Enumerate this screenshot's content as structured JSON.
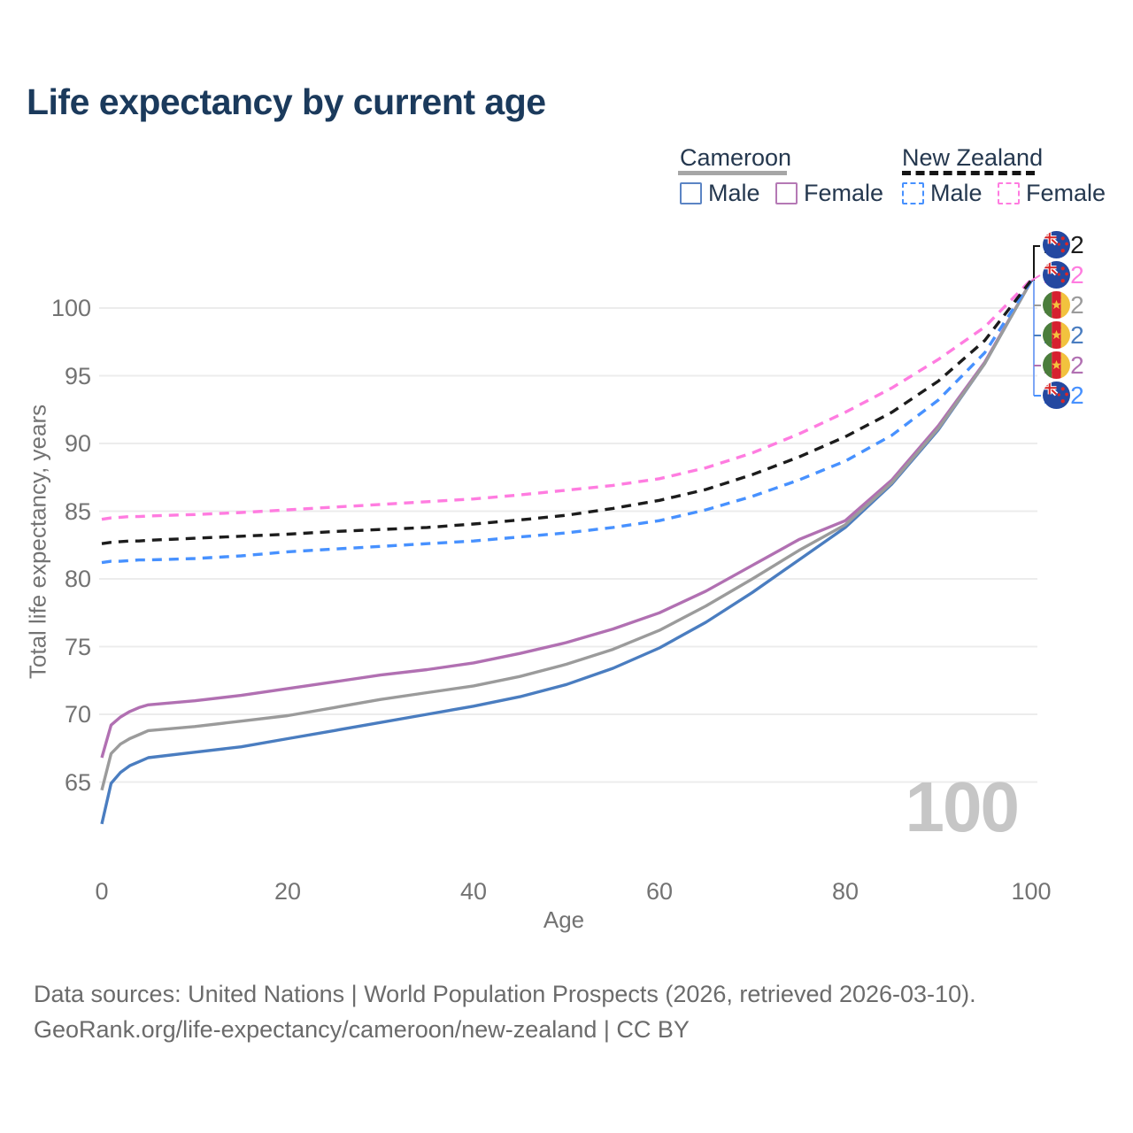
{
  "title": "Life expectancy by current age",
  "legend": {
    "groups": [
      {
        "label": "Cameroon",
        "line_style": "solid",
        "line_color": "#a6a6a6"
      },
      {
        "label": "New Zealand",
        "line_style": "dashed",
        "line_color": "#151515"
      }
    ],
    "items": [
      {
        "label": "Male",
        "group": "Cameroon",
        "color": "#5b84c4",
        "dashed": false
      },
      {
        "label": "Female",
        "group": "Cameroon",
        "color": "#b579b5",
        "dashed": false
      },
      {
        "label": "Male",
        "group": "New Zealand",
        "color": "#4791ff",
        "dashed": true
      },
      {
        "label": "Female",
        "group": "New Zealand",
        "color": "#ff7ce0",
        "dashed": true
      }
    ]
  },
  "chart_data": {
    "type": "line",
    "title": "Life expectancy by current age",
    "xlabel": "Age",
    "ylabel": "Total life expectancy, years",
    "x_ticks": [
      0,
      20,
      40,
      60,
      80,
      100
    ],
    "y_ticks": [
      65,
      70,
      75,
      80,
      85,
      90,
      95,
      100
    ],
    "xlim": [
      0,
      100
    ],
    "ylim": [
      61.5,
      103
    ],
    "grid": "horizontal",
    "legend_position": "top-right",
    "x": [
      0,
      1,
      2,
      3,
      4,
      5,
      10,
      15,
      20,
      25,
      30,
      35,
      40,
      45,
      50,
      55,
      60,
      65,
      70,
      75,
      80,
      85,
      90,
      95,
      100
    ],
    "series": [
      {
        "name": "Cameroon Male",
        "color": "#4a7dc0",
        "dashed": false,
        "values": [
          61.9,
          64.9,
          65.7,
          66.2,
          66.5,
          66.8,
          67.2,
          67.6,
          68.2,
          68.8,
          69.4,
          70.0,
          70.6,
          71.3,
          72.2,
          73.4,
          74.9,
          76.8,
          79.0,
          81.4,
          83.8,
          87.0,
          91.0,
          95.9,
          102.0
        ]
      },
      {
        "name": "Cameroon Female",
        "color": "#b170b2",
        "dashed": false,
        "values": [
          66.8,
          69.2,
          69.8,
          70.2,
          70.5,
          70.7,
          71.0,
          71.4,
          71.9,
          72.4,
          72.9,
          73.3,
          73.8,
          74.5,
          75.3,
          76.3,
          77.5,
          79.1,
          81.0,
          82.9,
          84.3,
          87.3,
          91.3,
          96.0,
          102.0
        ]
      },
      {
        "name": "Cameroon Total",
        "color": "#9b9b9b",
        "dashed": false,
        "values": [
          64.4,
          67.1,
          67.8,
          68.2,
          68.5,
          68.8,
          69.1,
          69.5,
          69.9,
          70.5,
          71.1,
          71.6,
          72.1,
          72.8,
          73.7,
          74.8,
          76.2,
          78.0,
          80.0,
          82.1,
          84.0,
          87.1,
          91.1,
          95.9,
          102.0
        ]
      },
      {
        "name": "New Zealand Male",
        "color": "#4791ff",
        "dashed": true,
        "values": [
          81.2,
          81.3,
          81.3,
          81.35,
          81.4,
          81.4,
          81.5,
          81.7,
          82.0,
          82.2,
          82.4,
          82.6,
          82.8,
          83.1,
          83.4,
          83.8,
          84.3,
          85.1,
          86.1,
          87.3,
          88.7,
          90.6,
          93.2,
          96.7,
          102.0
        ]
      },
      {
        "name": "New Zealand Female",
        "color": "#ff7ce0",
        "dashed": true,
        "values": [
          84.4,
          84.5,
          84.55,
          84.6,
          84.6,
          84.65,
          84.75,
          84.9,
          85.1,
          85.3,
          85.5,
          85.7,
          85.9,
          86.2,
          86.55,
          86.9,
          87.4,
          88.2,
          89.3,
          90.7,
          92.3,
          94.1,
          96.2,
          98.6,
          102.1
        ]
      },
      {
        "name": "New Zealand Total",
        "color": "#1c1c1c",
        "dashed": true,
        "values": [
          82.6,
          82.7,
          82.75,
          82.8,
          82.8,
          82.85,
          83.0,
          83.15,
          83.3,
          83.5,
          83.65,
          83.8,
          84.05,
          84.35,
          84.7,
          85.2,
          85.8,
          86.6,
          87.7,
          89.0,
          90.5,
          92.3,
          94.6,
          97.6,
          102.05
        ]
      }
    ]
  },
  "end_labels": [
    {
      "value": "102",
      "color": "#1c1c1c",
      "flag": "nz",
      "series": "New Zealand Total"
    },
    {
      "value": "102",
      "color": "#ff7ce0",
      "flag": "nz",
      "series": "New Zealand Female"
    },
    {
      "value": "102",
      "color": "#9b9b9b",
      "flag": "cm",
      "series": "Cameroon Total"
    },
    {
      "value": "102",
      "color": "#4a7dc0",
      "flag": "cm",
      "series": "Cameroon Male"
    },
    {
      "value": "102",
      "color": "#b170b2",
      "flag": "cm",
      "series": "Cameroon Female"
    },
    {
      "value": "102",
      "color": "#4791ff",
      "flag": "nz",
      "series": "New Zealand Male"
    }
  ],
  "watermark": "100",
  "footer": {
    "line1": "Data sources: United Nations | World Population Prospects (2026, retrieved 2026-03-10).",
    "line2": "GeoRank.org/life-expectancy/cameroon/new-zealand | CC BY"
  }
}
